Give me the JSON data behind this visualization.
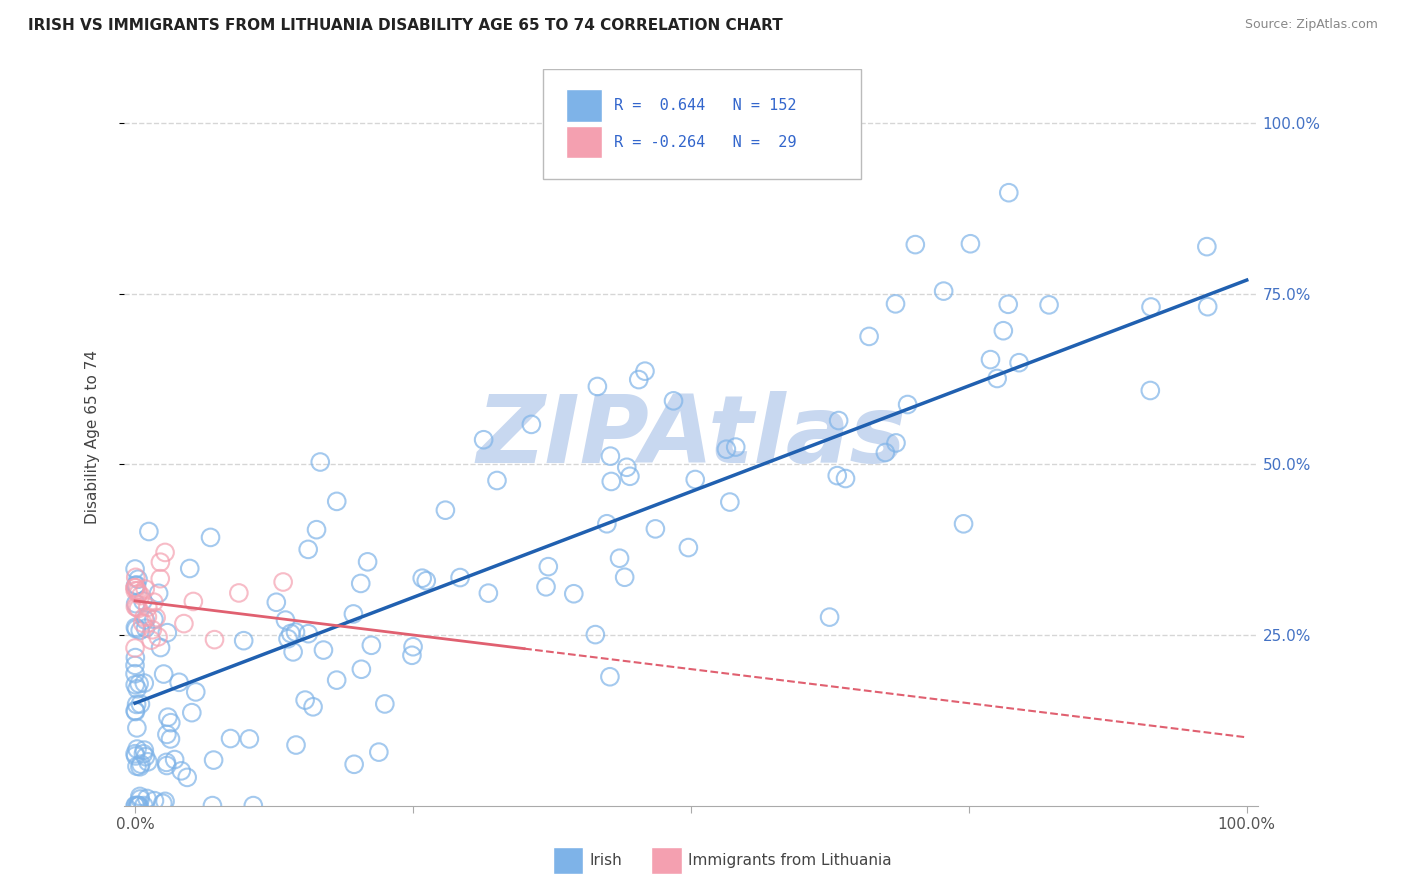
{
  "title": "IRISH VS IMMIGRANTS FROM LITHUANIA DISABILITY AGE 65 TO 74 CORRELATION CHART",
  "source": "Source: ZipAtlas.com",
  "ylabel": "Disability Age 65 to 74",
  "yticks": [
    "25.0%",
    "50.0%",
    "75.0%",
    "100.0%"
  ],
  "ytick_vals": [
    0.25,
    0.5,
    0.75,
    1.0
  ],
  "xlim": [
    0.0,
    1.0
  ],
  "ylim": [
    0.0,
    1.08
  ],
  "irish_R": 0.644,
  "irish_N": 152,
  "lith_R": -0.264,
  "lith_N": 29,
  "irish_color": "#7EB3E8",
  "lith_color": "#F4A0B0",
  "irish_line_color": "#2060B0",
  "lith_line_color": "#E06070",
  "watermark": "ZIPAtlas",
  "watermark_color": "#C8D8F0",
  "legend_irish": "Irish",
  "legend_lith": "Immigrants from Lithuania",
  "background_color": "#FFFFFF",
  "grid_color": "#CCCCCC",
  "title_fontsize": 11,
  "irish_seed": 42,
  "lith_seed": 7,
  "irish_line_x0": 0.0,
  "irish_line_y0": 0.15,
  "irish_line_x1": 1.0,
  "irish_line_y1": 0.77,
  "lith_line_x0": 0.0,
  "lith_line_y0": 0.3,
  "lith_line_x1": 1.0,
  "lith_line_y1": 0.1
}
